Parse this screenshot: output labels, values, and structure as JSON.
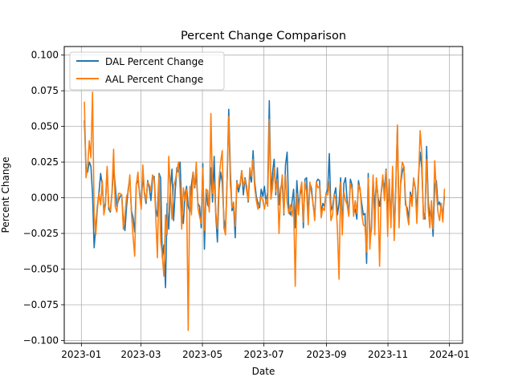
{
  "chart_data": {
    "type": "line",
    "title": "Percent Change Comparison",
    "xlabel": "Date",
    "ylabel": "Percent Change",
    "x_start": "2023-01-04",
    "x_end": "2023-12-27",
    "xlim": [
      "2022-12-15",
      "2024-01-14"
    ],
    "ylim": [
      -0.102,
      0.106
    ],
    "x_ticks": [
      {
        "date": "2023-01-01",
        "label": "2023-01"
      },
      {
        "date": "2023-03-01",
        "label": "2023-03"
      },
      {
        "date": "2023-05-01",
        "label": "2023-05"
      },
      {
        "date": "2023-07-01",
        "label": "2023-07"
      },
      {
        "date": "2023-09-01",
        "label": "2023-09"
      },
      {
        "date": "2023-11-01",
        "label": "2023-11"
      },
      {
        "date": "2024-01-01",
        "label": "2024-01"
      }
    ],
    "y_ticks": [
      {
        "value": -0.1,
        "label": "−0.100"
      },
      {
        "value": -0.075,
        "label": "−0.075"
      },
      {
        "value": -0.05,
        "label": "−0.050"
      },
      {
        "value": -0.025,
        "label": "−0.025"
      },
      {
        "value": 0.0,
        "label": "0.000"
      },
      {
        "value": 0.025,
        "label": "0.025"
      },
      {
        "value": 0.05,
        "label": "0.050"
      },
      {
        "value": 0.075,
        "label": "0.075"
      },
      {
        "value": 0.1,
        "label": "0.100"
      }
    ],
    "grid": true,
    "legend_position": "top-left",
    "series": [
      {
        "name": "DAL Percent Change",
        "color": "#1f77b4",
        "values": [
          0.054,
          0.021,
          0.018,
          0.025,
          0.022,
          0.003,
          -0.035,
          -0.02,
          -0.006,
          0.004,
          0.017,
          0.009,
          -0.009,
          -0.003,
          0.021,
          -0.008,
          -0.01,
          0.003,
          0.021,
          0.009,
          -0.006,
          -0.002,
          0.001,
          0.002,
          -0.016,
          -0.023,
          -0.006,
          0.006,
          0.014,
          -0.009,
          -0.014,
          -0.024,
          0.01,
          0.012,
          0.004,
          -0.006,
          0.016,
          0.003,
          -0.004,
          0.012,
          0.007,
          -0.002,
          0.013,
          0.015,
          -0.008,
          -0.013,
          0.017,
          0.014,
          -0.042,
          -0.033,
          -0.063,
          -0.004,
          -0.022,
          0.007,
          0.02,
          -0.016,
          0.005,
          0.021,
          0.018,
          0.025,
          -0.009,
          -0.018,
          0.002,
          0.008,
          -0.006,
          -0.01,
          0.009,
          0.018,
          0.007,
          0.016,
          -0.004,
          -0.006,
          -0.021,
          0.024,
          -0.036,
          0.005,
          -0.005,
          -0.007,
          0.021,
          -0.003,
          0.029,
          -0.012,
          -0.031,
          0.006,
          0.018,
          0.011,
          -0.015,
          -0.022,
          0.013,
          0.062,
          0.018,
          -0.009,
          -0.006,
          -0.028,
          0.012,
          0.004,
          0.009,
          0.019,
          0.002,
          0.014,
          0.008,
          -0.003,
          0.017,
          0.011,
          0.033,
          0.011,
          0.001,
          -0.004,
          -0.007,
          0.006,
          0.001,
          0.008,
          -0.004,
          0.004,
          0.068,
          0.001,
          0.018,
          0.027,
          0.002,
          0.021,
          -0.005,
          0.007,
          0.01,
          -0.012,
          0.023,
          0.032,
          -0.009,
          -0.012,
          -0.003,
          0.006,
          -0.021,
          0.012,
          -0.006,
          0.002,
          0.008,
          -0.021,
          0.013,
          0.014,
          -0.014,
          0.01,
          0.007,
          -0.005,
          -0.013,
          0.011,
          0.013,
          0.012,
          -0.011,
          -0.004,
          -0.006,
          0.003,
          0.006,
          0.031,
          -0.009,
          -0.006,
          0.002,
          0.007,
          -0.012,
          -0.004,
          0.014,
          -0.021,
          0.01,
          0.014,
          -0.002,
          -0.012,
          0.013,
          0.009,
          -0.011,
          -0.008,
          -0.015,
          0.012,
          0.005,
          -0.004,
          -0.012,
          -0.011,
          -0.046,
          0.017,
          -0.03,
          -0.022,
          0.014,
          -0.008,
          0.011,
          0.001,
          -0.006,
          0.003,
          0.013,
          0.006,
          0.02,
          -0.011,
          0.008,
          -0.014,
          0.015,
          -0.026,
          0.008,
          0.05,
          -0.016,
          0.01,
          0.018,
          0.022,
          -0.005,
          -0.007,
          -0.015,
          0.004,
          -0.002,
          0.013,
          0.007,
          -0.01,
          0.015,
          0.032,
          0.021,
          -0.01,
          -0.015,
          0.036,
          -0.002,
          -0.013,
          -0.008,
          -0.027,
          0.008,
          0.012,
          -0.005,
          -0.003,
          -0.008,
          -0.011,
          0.001
        ]
      },
      {
        "name": "AAL Percent Change",
        "color": "#ff7f0e",
        "values": [
          0.067,
          0.014,
          0.022,
          0.04,
          0.028,
          0.074,
          -0.012,
          -0.026,
          -0.008,
          0.003,
          -0.005,
          0.012,
          -0.012,
          -0.005,
          0.022,
          -0.006,
          -0.009,
          0.004,
          0.034,
          -0.006,
          -0.01,
          0.003,
          0.003,
          0.002,
          -0.022,
          -0.012,
          0.001,
          0.004,
          0.016,
          -0.011,
          -0.027,
          -0.041,
          0.009,
          0.018,
          0.002,
          -0.008,
          0.023,
          0.004,
          -0.002,
          0.011,
          0.009,
          0.005,
          0.016,
          0.013,
          -0.013,
          -0.042,
          0.016,
          -0.03,
          -0.04,
          -0.055,
          -0.012,
          -0.026,
          0.029,
          0.005,
          -0.015,
          0.008,
          0.012,
          0.018,
          0.025,
          0.006,
          -0.022,
          0.007,
          -0.002,
          0.006,
          -0.093,
          0.008,
          -0.012,
          0.018,
          0.008,
          0.025,
          -0.007,
          -0.013,
          -0.018,
          0.021,
          -0.023,
          0.006,
          0.005,
          -0.01,
          0.059,
          0.003,
          0.011,
          -0.01,
          -0.022,
          0.013,
          0.025,
          0.033,
          -0.021,
          -0.026,
          0.012,
          0.057,
          0.009,
          -0.007,
          -0.003,
          -0.02,
          0.011,
          0.008,
          0.01,
          0.019,
          0.008,
          0.013,
          0.005,
          -0.002,
          0.021,
          0.015,
          0.027,
          0.007,
          -0.002,
          -0.008,
          -0.003,
          0.001,
          -0.002,
          -0.008,
          -0.001,
          -0.006,
          0.055,
          -0.001,
          0.007,
          0.021,
          0.004,
          0.013,
          -0.025,
          0.004,
          0.016,
          -0.011,
          0.016,
          -0.003,
          -0.011,
          -0.005,
          -0.013,
          -0.004,
          -0.062,
          0.003,
          -0.012,
          0.004,
          0.011,
          -0.017,
          0.011,
          0.004,
          -0.019,
          0.011,
          0.003,
          -0.004,
          -0.016,
          0.011,
          0.007,
          0.008,
          -0.014,
          -0.007,
          -0.009,
          0.003,
          0.002,
          0.011,
          -0.016,
          -0.012,
          0.002,
          -0.001,
          -0.022,
          -0.057,
          0.011,
          -0.026,
          0.004,
          -0.002,
          -0.005,
          -0.013,
          0.01,
          0.006,
          -0.013,
          -0.002,
          -0.011,
          0.009,
          0.007,
          -0.011,
          -0.019,
          -0.02,
          -0.038,
          0.014,
          -0.036,
          -0.016,
          0.016,
          -0.026,
          0.014,
          0.001,
          -0.048,
          0.004,
          0.016,
          -0.002,
          0.019,
          -0.027,
          0.013,
          -0.021,
          0.022,
          -0.03,
          0.004,
          0.051,
          -0.021,
          0.012,
          0.025,
          0.022,
          -0.001,
          -0.012,
          -0.019,
          0.002,
          -0.006,
          0.014,
          0.007,
          -0.018,
          0.011,
          0.047,
          0.032,
          -0.015,
          -0.012,
          0.027,
          -0.008,
          -0.021,
          -0.002,
          -0.022,
          0.026,
          0.004,
          -0.01,
          -0.016,
          -0.004,
          -0.017,
          0.006
        ]
      }
    ]
  }
}
